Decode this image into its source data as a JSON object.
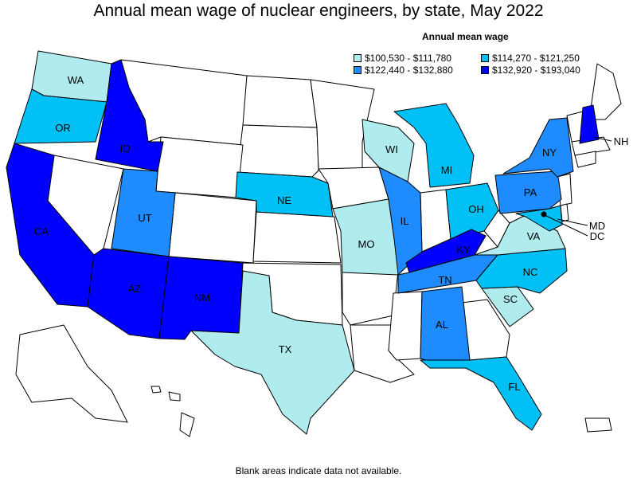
{
  "title": "Annual mean wage of nuclear engineers, by state, May 2022",
  "legend": {
    "title": "Annual mean wage",
    "items": [
      {
        "label": "$100,530 - $111,780",
        "color": "#b0ecee"
      },
      {
        "label": "$114,270 - $121,250",
        "color": "#00c0f5"
      },
      {
        "label": "$122,440 - $132,880",
        "color": "#1e8cff"
      },
      {
        "label": "$132,920 - $193,040",
        "color": "#0000ff"
      }
    ]
  },
  "states": [
    {
      "code": "WA",
      "tier": 1
    },
    {
      "code": "OR",
      "tier": 2
    },
    {
      "code": "CA",
      "tier": 4
    },
    {
      "code": "ID",
      "tier": 4
    },
    {
      "code": "UT",
      "tier": 3
    },
    {
      "code": "AZ",
      "tier": 4
    },
    {
      "code": "NM",
      "tier": 4
    },
    {
      "code": "TX",
      "tier": 1
    },
    {
      "code": "NE",
      "tier": 2
    },
    {
      "code": "MO",
      "tier": 1
    },
    {
      "code": "WI",
      "tier": 1
    },
    {
      "code": "IL",
      "tier": 3
    },
    {
      "code": "MI",
      "tier": 2
    },
    {
      "code": "OH",
      "tier": 2
    },
    {
      "code": "KY",
      "tier": 4
    },
    {
      "code": "TN",
      "tier": 3
    },
    {
      "code": "AL",
      "tier": 3
    },
    {
      "code": "FL",
      "tier": 2
    },
    {
      "code": "SC",
      "tier": 1
    },
    {
      "code": "NC",
      "tier": 2
    },
    {
      "code": "VA",
      "tier": 1
    },
    {
      "code": "PA",
      "tier": 3
    },
    {
      "code": "NY",
      "tier": 3
    },
    {
      "code": "NH",
      "tier": 4
    },
    {
      "code": "MD",
      "tier": 2
    },
    {
      "code": "DC",
      "tier": 0
    }
  ],
  "footnote": "Blank areas indicate data not available."
}
